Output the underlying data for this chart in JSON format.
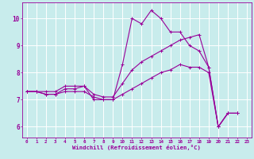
{
  "title": "",
  "xlabel": "Windchill (Refroidissement éolien,°C)",
  "ylabel": "",
  "background_color": "#c8ecec",
  "grid_color": "#ffffff",
  "line_color": "#990099",
  "xlim": [
    -0.5,
    23.5
  ],
  "ylim": [
    5.6,
    10.6
  ],
  "yticks": [
    6,
    7,
    8,
    9,
    10
  ],
  "xticks": [
    0,
    1,
    2,
    3,
    4,
    5,
    6,
    7,
    8,
    9,
    10,
    11,
    12,
    13,
    14,
    15,
    16,
    17,
    18,
    19,
    20,
    21,
    22,
    23
  ],
  "series": [
    {
      "x": [
        0,
        1,
        2,
        3,
        4,
        5,
        6,
        7,
        8,
        9,
        10,
        11,
        12,
        13,
        14,
        15,
        16,
        17,
        18,
        19,
        20,
        21,
        22
      ],
      "y": [
        7.3,
        7.3,
        7.3,
        7.3,
        7.5,
        7.5,
        7.5,
        7.0,
        7.0,
        7.0,
        8.3,
        10.0,
        9.8,
        10.3,
        10.0,
        9.5,
        9.5,
        9.0,
        8.8,
        8.2,
        6.0,
        6.5,
        6.5
      ]
    },
    {
      "x": [
        0,
        1,
        2,
        3,
        4,
        5,
        6,
        7,
        8,
        9,
        10,
        11,
        12,
        13,
        14,
        15,
        16,
        17,
        18,
        19,
        20,
        21,
        22
      ],
      "y": [
        7.3,
        7.3,
        7.2,
        7.2,
        7.4,
        7.4,
        7.5,
        7.2,
        7.1,
        7.1,
        7.6,
        8.1,
        8.4,
        8.6,
        8.8,
        9.0,
        9.2,
        9.3,
        9.4,
        8.2,
        6.0,
        6.5,
        6.5
      ]
    },
    {
      "x": [
        0,
        1,
        2,
        3,
        4,
        5,
        6,
        7,
        8,
        9,
        10,
        11,
        12,
        13,
        14,
        15,
        16,
        17,
        18,
        19,
        20,
        21,
        22
      ],
      "y": [
        7.3,
        7.3,
        7.2,
        7.2,
        7.3,
        7.3,
        7.3,
        7.1,
        7.0,
        7.0,
        7.2,
        7.4,
        7.6,
        7.8,
        8.0,
        8.1,
        8.3,
        8.2,
        8.2,
        8.0,
        6.0,
        6.5,
        6.5
      ]
    }
  ]
}
